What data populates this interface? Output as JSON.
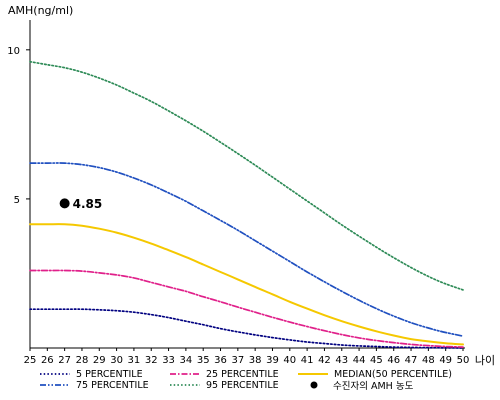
{
  "chart_data": {
    "type": "line",
    "ylabel": "AMH(ng/ml)",
    "xlabel": "나이",
    "x": [
      25,
      26,
      27,
      28,
      29,
      30,
      31,
      32,
      33,
      34,
      35,
      36,
      37,
      38,
      39,
      40,
      41,
      42,
      43,
      44,
      45,
      46,
      47,
      48,
      49,
      50
    ],
    "xlim": [
      25,
      50
    ],
    "ylim": [
      0,
      11
    ],
    "yticks": [
      5,
      10
    ],
    "grid": false,
    "legend_position": "bottom",
    "series": [
      {
        "name": "5 PERCENTILE",
        "color": "#000080",
        "dash": "dot",
        "values": [
          1.3,
          1.3,
          1.3,
          1.3,
          1.28,
          1.25,
          1.2,
          1.12,
          1.02,
          0.9,
          0.78,
          0.65,
          0.54,
          0.44,
          0.35,
          0.27,
          0.2,
          0.15,
          0.1,
          0.07,
          0.05,
          0.03,
          0.02,
          0.01,
          0.005,
          0.0
        ]
      },
      {
        "name": "25 PERCENTILE",
        "color": "#e0208a",
        "dash": "dashdot",
        "values": [
          2.6,
          2.6,
          2.6,
          2.58,
          2.52,
          2.45,
          2.35,
          2.2,
          2.05,
          1.9,
          1.72,
          1.55,
          1.37,
          1.2,
          1.03,
          0.87,
          0.72,
          0.58,
          0.45,
          0.34,
          0.25,
          0.18,
          0.12,
          0.08,
          0.05,
          0.03
        ]
      },
      {
        "name": "MEDIAN(50 PERCENTILE)",
        "color": "#f5c800",
        "dash": "solid",
        "values": [
          4.15,
          4.15,
          4.15,
          4.1,
          4.0,
          3.87,
          3.7,
          3.5,
          3.28,
          3.05,
          2.8,
          2.55,
          2.3,
          2.05,
          1.8,
          1.55,
          1.32,
          1.1,
          0.9,
          0.72,
          0.56,
          0.42,
          0.3,
          0.22,
          0.16,
          0.12
        ]
      },
      {
        "name": "75 PERCENTILE",
        "color": "#2050c0",
        "dash": "dashdotdot",
        "values": [
          6.2,
          6.2,
          6.2,
          6.15,
          6.05,
          5.9,
          5.7,
          5.47,
          5.2,
          4.92,
          4.6,
          4.28,
          3.95,
          3.6,
          3.25,
          2.9,
          2.55,
          2.22,
          1.9,
          1.6,
          1.32,
          1.07,
          0.85,
          0.67,
          0.52,
          0.4
        ]
      },
      {
        "name": "95 PERCENTILE",
        "color": "#2e8b57",
        "dash": "dot",
        "values": [
          9.6,
          9.5,
          9.4,
          9.25,
          9.05,
          8.82,
          8.55,
          8.27,
          7.95,
          7.62,
          7.27,
          6.9,
          6.52,
          6.13,
          5.73,
          5.33,
          4.93,
          4.53,
          4.13,
          3.75,
          3.38,
          3.03,
          2.7,
          2.4,
          2.15,
          1.95
        ]
      }
    ],
    "point": {
      "x": 27,
      "y": 4.85,
      "label": "4.85",
      "legend": "수진자의 AMH 농도",
      "color": "#000000"
    }
  }
}
